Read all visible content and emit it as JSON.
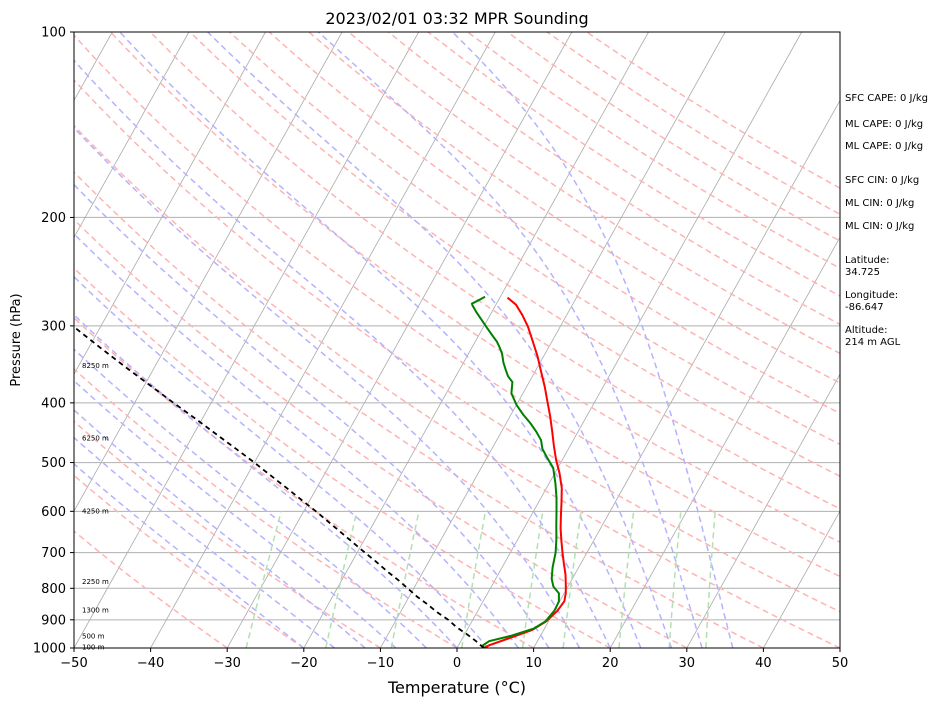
{
  "chart_data": {
    "type": "skew-t",
    "title": "2023/02/01 03:32 MPR Sounding",
    "xlabel": "Temperature (°C)",
    "ylabel": "Pressure (hPa)",
    "xlim": [
      -50,
      50
    ],
    "ylim": [
      1000,
      100
    ],
    "y_scale": "log",
    "grid": true,
    "x_ticks": [
      "−50",
      "−40",
      "−30",
      "−20",
      "−10",
      "0",
      "10",
      "20",
      "30",
      "40",
      "50"
    ],
    "y_ticks": [
      "100",
      "200",
      "300",
      "400",
      "500",
      "600",
      "700",
      "800",
      "900",
      "1000"
    ],
    "height_labels": [
      {
        "p": 347,
        "label": "8250 m"
      },
      {
        "p": 455,
        "label": "6250 m"
      },
      {
        "p": 598,
        "label": "4250 m"
      },
      {
        "p": 778,
        "label": "2250 m"
      },
      {
        "p": 866,
        "label": "1300 m"
      },
      {
        "p": 955,
        "label": "500 m"
      },
      {
        "p": 995,
        "label": "100 m"
      }
    ],
    "series": [
      {
        "color": "#ff0000",
        "points": [
          [
            3.5,
            1000
          ],
          [
            4.0,
            990
          ],
          [
            6.0,
            965
          ],
          [
            8.5,
            935
          ],
          [
            9.7,
            905
          ],
          [
            10.4,
            870
          ],
          [
            10.6,
            840
          ],
          [
            10.2,
            815
          ],
          [
            9.6,
            790
          ],
          [
            8.8,
            760
          ],
          [
            7.8,
            730
          ],
          [
            6.8,
            700
          ],
          [
            5.8,
            670
          ],
          [
            4.8,
            640
          ],
          [
            3.9,
            610
          ],
          [
            3.0,
            580
          ],
          [
            2.0,
            550
          ],
          [
            0.6,
            520
          ],
          [
            -0.8,
            495
          ],
          [
            -2.1,
            470
          ],
          [
            -3.4,
            445
          ],
          [
            -4.8,
            420
          ],
          [
            -6.2,
            398
          ],
          [
            -7.6,
            377
          ],
          [
            -9.2,
            356
          ],
          [
            -10.8,
            336
          ],
          [
            -12.5,
            318
          ],
          [
            -14.2,
            301
          ],
          [
            -15.8,
            288
          ],
          [
            -17.4,
            277
          ],
          [
            -19.0,
            270
          ]
        ]
      },
      {
        "color": "#008000",
        "points": [
          [
            3.5,
            1000
          ],
          [
            3.2,
            990
          ],
          [
            3.7,
            975
          ],
          [
            6.2,
            955
          ],
          [
            8.6,
            930
          ],
          [
            9.6,
            905
          ],
          [
            10.0,
            870
          ],
          [
            9.9,
            840
          ],
          [
            9.3,
            815
          ],
          [
            8.1,
            795
          ],
          [
            7.3,
            772
          ],
          [
            6.6,
            740
          ],
          [
            5.9,
            700
          ],
          [
            5.0,
            665
          ],
          [
            4.0,
            632
          ],
          [
            3.0,
            600
          ],
          [
            2.0,
            570
          ],
          [
            0.8,
            540
          ],
          [
            -0.6,
            510
          ],
          [
            -2.2,
            490
          ],
          [
            -3.4,
            475
          ],
          [
            -4.2,
            460
          ],
          [
            -5.4,
            446
          ],
          [
            -6.8,
            432
          ],
          [
            -8.4,
            418
          ],
          [
            -10.0,
            403
          ],
          [
            -11.5,
            386
          ],
          [
            -12.2,
            370
          ],
          [
            -13.2,
            362
          ],
          [
            -14.0,
            353
          ],
          [
            -14.8,
            344
          ],
          [
            -15.6,
            333
          ],
          [
            -16.4,
            325
          ],
          [
            -17.2,
            318
          ],
          [
            -18.2,
            311
          ],
          [
            -19.5,
            302
          ],
          [
            -20.8,
            293
          ],
          [
            -22.0,
            285
          ],
          [
            -23.0,
            278
          ],
          [
            -23.2,
            276
          ],
          [
            -22.5,
            272
          ],
          [
            -22.0,
            269
          ]
        ]
      },
      {
        "color": "#000000",
        "dashed": true,
        "points": [
          [
            3.5,
            1000
          ],
          [
            2.0,
            975
          ],
          [
            0.3,
            950
          ],
          [
            -1.6,
            925
          ],
          [
            -3.2,
            900
          ],
          [
            -5.2,
            875
          ],
          [
            -7.0,
            850
          ],
          [
            -9.0,
            825
          ],
          [
            -10.8,
            800
          ],
          [
            -12.7,
            775
          ],
          [
            -14.8,
            750
          ],
          [
            -16.8,
            725
          ],
          [
            -19.0,
            700
          ],
          [
            -21.2,
            675
          ],
          [
            -23.5,
            650
          ],
          [
            -25.9,
            625
          ],
          [
            -28.4,
            600
          ],
          [
            -31.1,
            575
          ],
          [
            -33.9,
            550
          ],
          [
            -36.9,
            525
          ],
          [
            -40.0,
            500
          ],
          [
            -43.4,
            475
          ],
          [
            -47.0,
            450
          ],
          [
            -50.8,
            425
          ],
          [
            -54.9,
            400
          ],
          [
            -59.2,
            375
          ],
          [
            -63.8,
            350
          ],
          [
            -68.6,
            325
          ],
          [
            -73.7,
            300
          ],
          [
            -76.5,
            287
          ],
          [
            -79.2,
            275
          ],
          [
            -80.7,
            268
          ]
        ]
      }
    ],
    "background_lines": {
      "dry_adiabats_color": "#ffb3b3",
      "moist_adiabats_color": "#b3b3ff",
      "mixing_ratio_color": "#b3e0b3",
      "isotherm_color": "#aaaaaa"
    }
  },
  "stats": [
    "SFC CAPE: 0 J/kg",
    "ML CAPE: 0 J/kg",
    "ML CAPE: 0 J/kg",
    "SFC CIN: 0 J/kg",
    "ML CIN: 0 J/kg",
    "ML CIN: 0 J/kg",
    "Latitude:\n34.725",
    "Longitude:\n-86.647",
    "Altitude:\n214 m AGL"
  ]
}
